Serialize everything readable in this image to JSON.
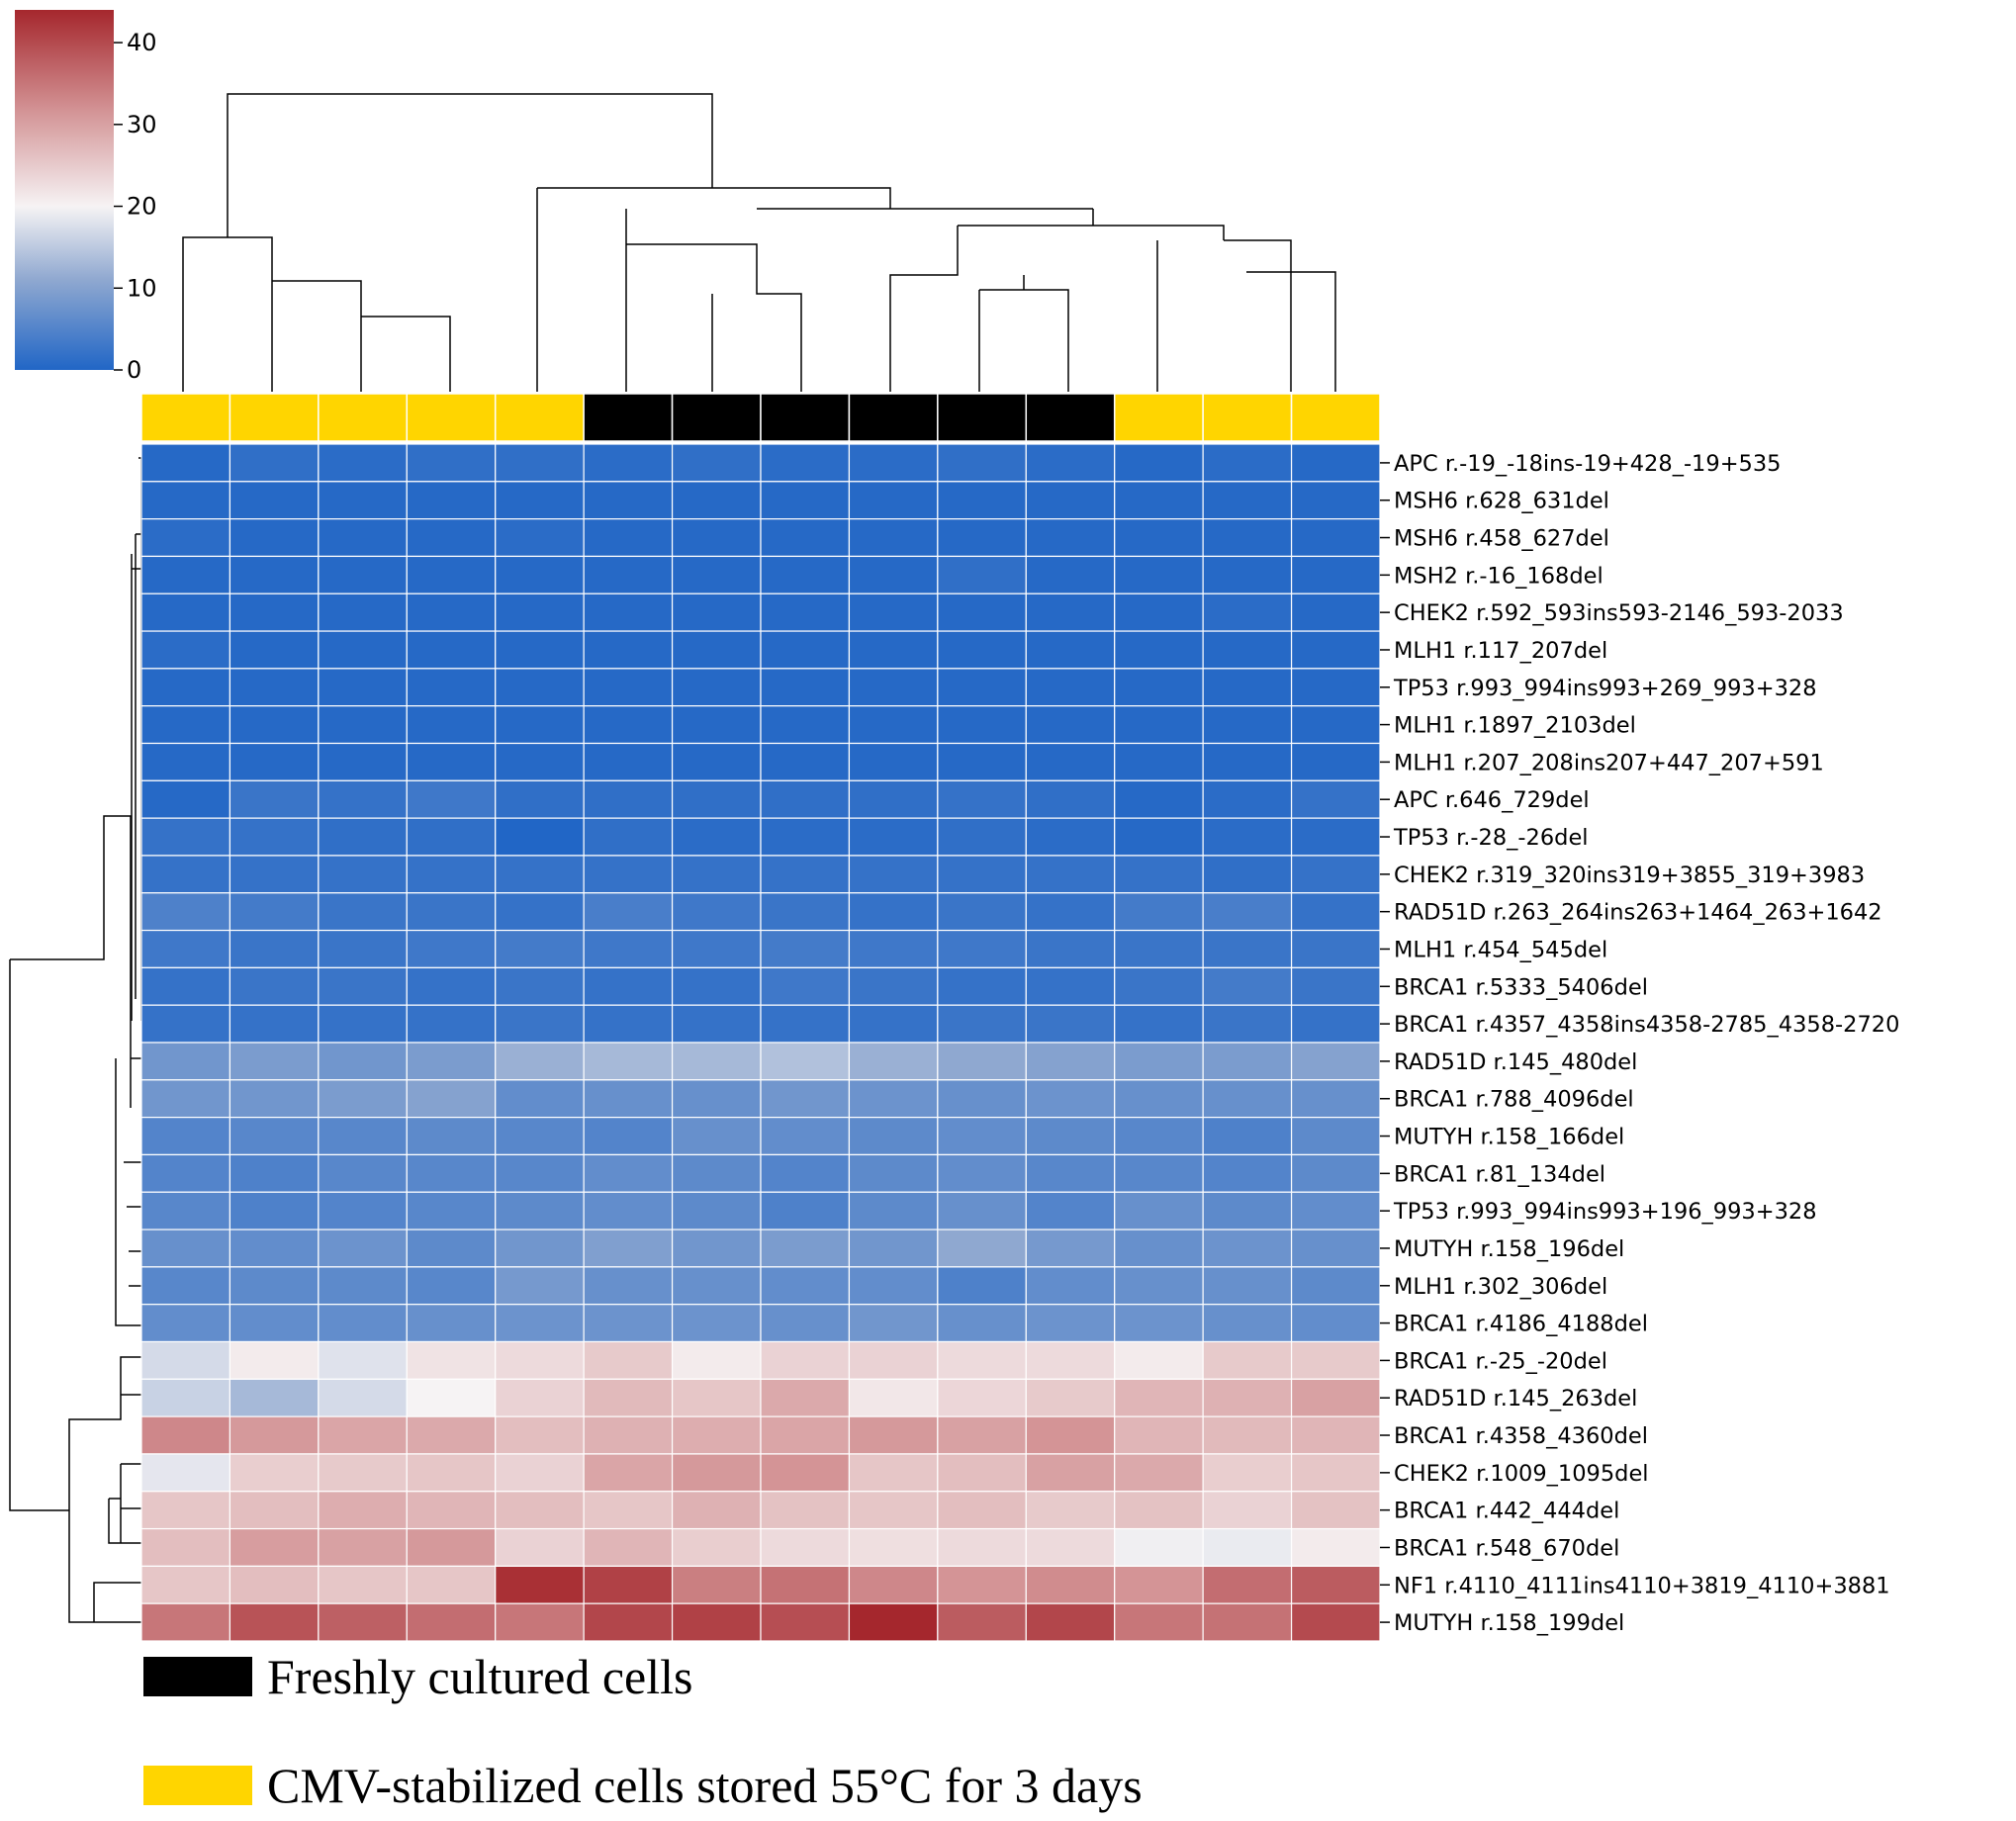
{
  "chart_data": {
    "type": "heatmap",
    "colorbar": {
      "ticks": [
        0,
        10,
        20,
        30,
        40
      ],
      "range": [
        0,
        44
      ],
      "colormap": "vlag",
      "colors": {
        "low": "#2166c6",
        "mid": "#f6f3f4",
        "high": "#a5272d"
      }
    },
    "column_groups": [
      "CMV-stabilized",
      "CMV-stabilized",
      "CMV-stabilized",
      "CMV-stabilized",
      "CMV-stabilized",
      "Freshly cultured",
      "Freshly cultured",
      "Freshly cultured",
      "Freshly cultured",
      "Freshly cultured",
      "Freshly cultured",
      "CMV-stabilized",
      "CMV-stabilized",
      "CMV-stabilized"
    ],
    "group_colors": {
      "Freshly cultured": "#000000",
      "CMV-stabilized": "#ffd500"
    },
    "rows": [
      "APC r.-19_-18ins-19+428_-19+535",
      "MSH6 r.628_631del",
      "MSH6 r.458_627del",
      "MSH2 r.-16_168del",
      "CHEK2 r.592_593ins593-2146_593-2033",
      "MLH1 r.117_207del",
      "TP53 r.993_994ins993+269_993+328",
      "MLH1 r.1897_2103del",
      "MLH1 r.207_208ins207+447_207+591",
      "APC r.646_729del",
      "TP53 r.-28_-26del",
      "CHEK2 r.319_320ins319+3855_319+3983",
      "RAD51D r.263_264ins263+1464_263+1642",
      "MLH1 r.454_545del",
      "BRCA1 r.5333_5406del",
      "BRCA1 r.4357_4358ins4358-2785_4358-2720",
      "RAD51D r.145_480del",
      "BRCA1 r.788_4096del",
      "MUTYH r.158_166del",
      "BRCA1 r.81_134del",
      "TP53 r.993_994ins993+196_993+328",
      "MUTYH r.158_196del",
      "MLH1 r.302_306del",
      "BRCA1 r.4186_4188del",
      "BRCA1 r.-25_-20del",
      "RAD51D r.145_263del",
      "BRCA1 r.4358_4360del",
      "CHEK2 r.1009_1095del",
      "BRCA1 r.442_444del",
      "BRCA1 r.548_670del",
      "NF1 r.4110_4111ins4110+3819_4110+3881",
      "MUTYH r.158_199del"
    ],
    "values": [
      [
        0.5,
        1.5,
        1,
        1.5,
        1.5,
        1,
        1.5,
        1,
        1,
        1.5,
        1,
        0.5,
        1,
        0.5
      ],
      [
        0.5,
        0.5,
        0.5,
        0.5,
        0.5,
        0.5,
        0.5,
        0.5,
        0.5,
        0.5,
        0.5,
        0.5,
        0.5,
        0.5
      ],
      [
        1,
        0.5,
        0.5,
        0.5,
        1,
        0.5,
        0.5,
        0.5,
        0.5,
        0.5,
        0.5,
        0.5,
        0.5,
        0.5
      ],
      [
        0.5,
        0.5,
        0.5,
        0.5,
        0.5,
        0.5,
        0.5,
        0.5,
        0.5,
        1.5,
        0.5,
        0.5,
        0.5,
        0.5
      ],
      [
        0.5,
        0.5,
        0.5,
        0.5,
        0.5,
        0.5,
        0.5,
        0.5,
        0.5,
        0.5,
        0.5,
        0.5,
        1,
        0.5
      ],
      [
        1,
        0.5,
        0.5,
        0.5,
        0.5,
        0.5,
        0.5,
        0.5,
        0.5,
        0.5,
        0.5,
        0.5,
        0.5,
        0.5
      ],
      [
        0.5,
        0.5,
        0.5,
        0.5,
        0.5,
        0.5,
        0.5,
        0.5,
        0.5,
        0.5,
        0.5,
        0.5,
        0.5,
        0.5
      ],
      [
        0.5,
        0.5,
        0.5,
        0.5,
        0.5,
        0.5,
        0.5,
        0.5,
        0.5,
        0.5,
        0.5,
        0.5,
        0.5,
        0.5
      ],
      [
        0.5,
        0.5,
        0.5,
        0.5,
        0.5,
        0.5,
        0.5,
        0.5,
        0.5,
        0.5,
        0.5,
        0.5,
        0.5,
        0.5
      ],
      [
        0.5,
        2.5,
        2,
        3,
        1.5,
        1.5,
        1.5,
        1.5,
        1.5,
        2,
        1.5,
        0.5,
        1,
        2
      ],
      [
        2,
        2,
        1.5,
        1.5,
        0,
        1.5,
        1,
        1,
        1,
        1.5,
        1,
        0.5,
        1,
        1
      ],
      [
        2,
        2,
        2,
        2,
        2,
        2,
        2,
        2,
        2,
        2,
        2,
        2,
        1.5,
        2
      ],
      [
        4.5,
        3.5,
        2.5,
        2.5,
        2,
        4,
        3,
        2.5,
        2,
        2.5,
        2,
        3.5,
        4,
        2
      ],
      [
        3,
        2.5,
        2.5,
        3,
        3.5,
        3,
        3,
        3.5,
        3,
        3,
        2.5,
        2.5,
        2.5,
        2.5
      ],
      [
        2,
        2.5,
        2.5,
        2,
        2.5,
        2,
        2,
        3,
        2.5,
        2,
        2,
        2.5,
        3.5,
        2.5
      ],
      [
        2,
        2,
        2,
        2,
        2.5,
        2,
        2,
        2,
        2,
        2.5,
        2.5,
        2,
        2.5,
        2
      ],
      [
        8,
        9,
        8,
        9,
        12,
        13,
        13,
        14,
        12,
        11,
        10,
        9,
        9,
        10
      ],
      [
        8,
        8,
        9,
        10,
        6.5,
        7,
        7,
        8,
        7.5,
        7,
        7.5,
        7,
        7,
        7
      ],
      [
        5,
        5.5,
        5.5,
        6,
        5.5,
        5,
        7,
        6.5,
        6,
        6.5,
        6,
        5.5,
        4.5,
        6
      ],
      [
        5,
        4.5,
        5.5,
        5.5,
        5.5,
        6.5,
        6,
        5,
        6,
        6.5,
        5.5,
        5.5,
        5,
        6
      ],
      [
        5.5,
        4.5,
        5,
        5.5,
        6,
        6.5,
        6,
        4.5,
        6,
        7,
        5,
        7,
        6,
        6.5
      ],
      [
        7,
        6.5,
        7.5,
        6,
        8,
        9.5,
        8,
        9,
        8,
        11,
        8.5,
        7,
        7.5,
        7
      ],
      [
        5.5,
        6,
        6,
        5.5,
        8.5,
        7,
        7,
        6.5,
        6.5,
        4.5,
        6.5,
        7,
        7,
        6
      ],
      [
        6.5,
        6.5,
        6.5,
        7,
        7.5,
        7.5,
        7.5,
        7,
        8,
        7,
        7.5,
        7.5,
        7,
        6.5
      ],
      [
        17,
        21,
        18,
        22,
        23,
        25,
        21,
        24,
        24,
        23,
        23,
        21,
        25,
        25
      ],
      [
        16,
        13,
        17,
        20,
        24,
        27,
        25.5,
        29,
        21.5,
        23.5,
        25,
        27.5,
        28,
        30
      ],
      [
        33,
        31,
        29.5,
        29,
        26.5,
        28,
        28.5,
        29.5,
        31,
        30,
        31.5,
        27.5,
        27,
        27.5
      ],
      [
        18.5,
        24.5,
        25,
        25.5,
        24,
        29.5,
        31,
        31.5,
        25.5,
        26.5,
        30,
        29,
        24.5,
        25.5
      ],
      [
        25.5,
        26.5,
        28.5,
        27.5,
        26.5,
        25.5,
        28,
        26,
        25.5,
        26.5,
        25,
        26,
        24,
        26
      ],
      [
        26.5,
        30.5,
        30,
        31,
        24,
        27.5,
        24.5,
        23,
        22.5,
        23,
        23,
        19.5,
        19,
        21
      ],
      [
        25.5,
        26.5,
        25.5,
        25.5,
        43,
        41,
        34,
        35.5,
        33,
        31.5,
        32.5,
        31.5,
        36,
        38
      ],
      [
        35,
        39,
        37.5,
        36,
        35,
        40.5,
        41,
        39.5,
        44,
        38,
        40.5,
        35,
        35.5,
        40
      ]
    ]
  },
  "legend": {
    "items": [
      {
        "label": "Freshly cultured cells",
        "color": "#000000"
      },
      {
        "label": "CMV-stabilized cells stored 55°C for 3 days",
        "color": "#ffd500"
      }
    ]
  }
}
